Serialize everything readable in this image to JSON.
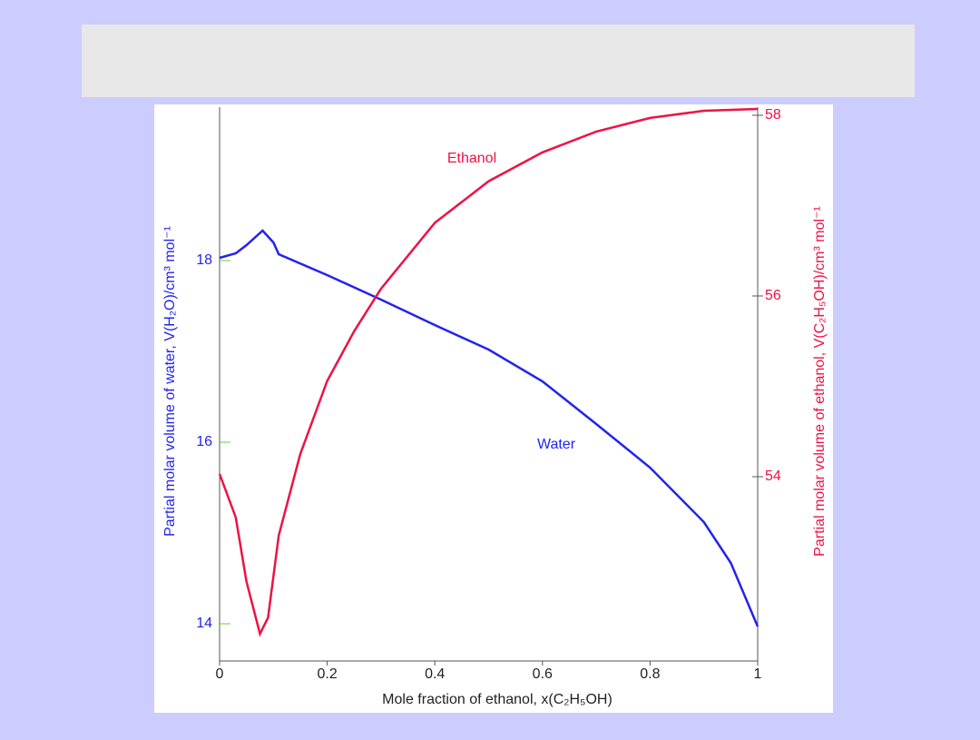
{
  "chart_data": {
    "type": "line",
    "xlabel": "Mole fraction of ethanol, x(C₂H₅OH)",
    "ylabel": "Partial molar volume of water, V(H₂O)/cm³ mol⁻¹",
    "y2label": "Partial molar volume of ethanol, V(C₂H₅OH)/cm³ mol⁻¹",
    "xlim": [
      0,
      1
    ],
    "xticks": [
      0,
      0.2,
      0.4,
      0.6,
      0.8,
      1
    ],
    "ylim": [
      13.59,
      19.69
    ],
    "yticks": [
      14,
      16,
      18
    ],
    "y2lim": [
      51.96,
      58.09
    ],
    "y2ticks": [
      54,
      56,
      58
    ],
    "series": [
      {
        "name": "Water",
        "color": "#2323ee",
        "axis": "y",
        "x": [
          0,
          0.03,
          0.05,
          0.08,
          0.1,
          0.11,
          0.2,
          0.3,
          0.4,
          0.5,
          0.6,
          0.7,
          0.8,
          0.9,
          0.95,
          1.0
        ],
        "values": [
          18.03,
          18.08,
          18.17,
          18.33,
          18.2,
          18.07,
          17.84,
          17.57,
          17.29,
          17.02,
          16.67,
          16.2,
          15.72,
          15.12,
          14.67,
          13.97
        ]
      },
      {
        "name": "Ethanol",
        "color": "#ee1144",
        "axis": "y2",
        "x": [
          0,
          0.03,
          0.05,
          0.075,
          0.09,
          0.11,
          0.15,
          0.2,
          0.25,
          0.3,
          0.4,
          0.5,
          0.6,
          0.7,
          0.8,
          0.9,
          1.0
        ],
        "values": [
          54.03,
          53.55,
          52.84,
          52.26,
          52.44,
          53.35,
          54.25,
          55.06,
          55.61,
          56.08,
          56.81,
          57.27,
          57.59,
          57.82,
          57.97,
          58.05,
          58.07
        ]
      }
    ]
  }
}
